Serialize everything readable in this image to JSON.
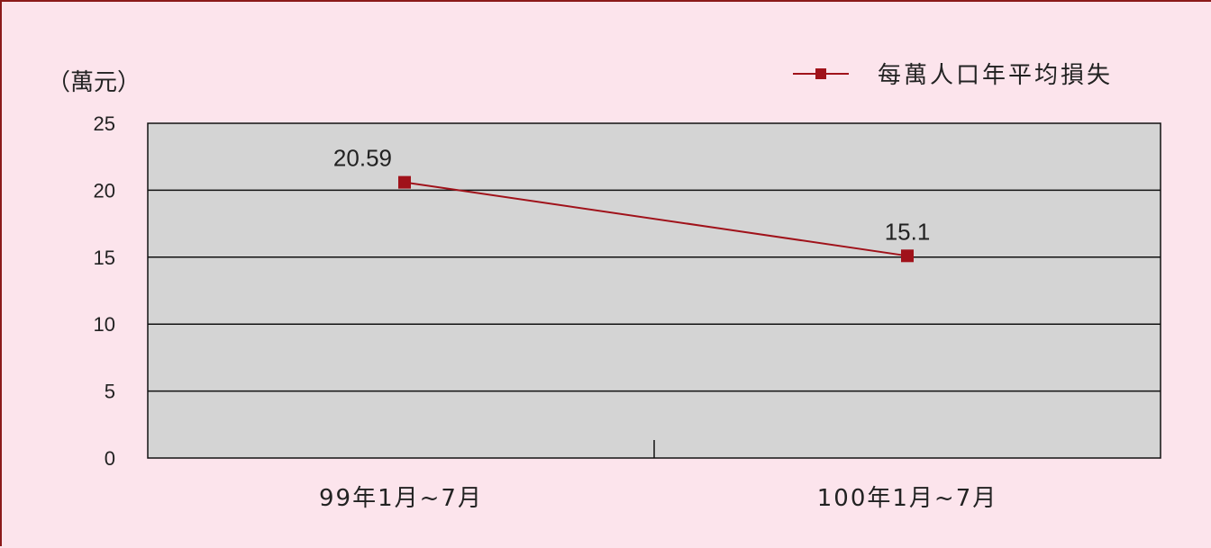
{
  "chart_data": {
    "type": "line",
    "unit_label": "（萬元）",
    "categories": [
      "99年1月~7月",
      "100年1月~7月"
    ],
    "series": [
      {
        "name": "每萬人口年平均損失",
        "values": [
          20.59,
          15.1
        ],
        "color": "#a0121a"
      }
    ],
    "data_labels": [
      "20.59",
      "15.1"
    ],
    "yticks": [
      0,
      5,
      10,
      15,
      20,
      25
    ],
    "ylim": [
      0,
      25
    ],
    "grid": true,
    "legend": "top-right",
    "plot_bg": "#d4d4d4",
    "page_bg": "#fce4ec"
  }
}
